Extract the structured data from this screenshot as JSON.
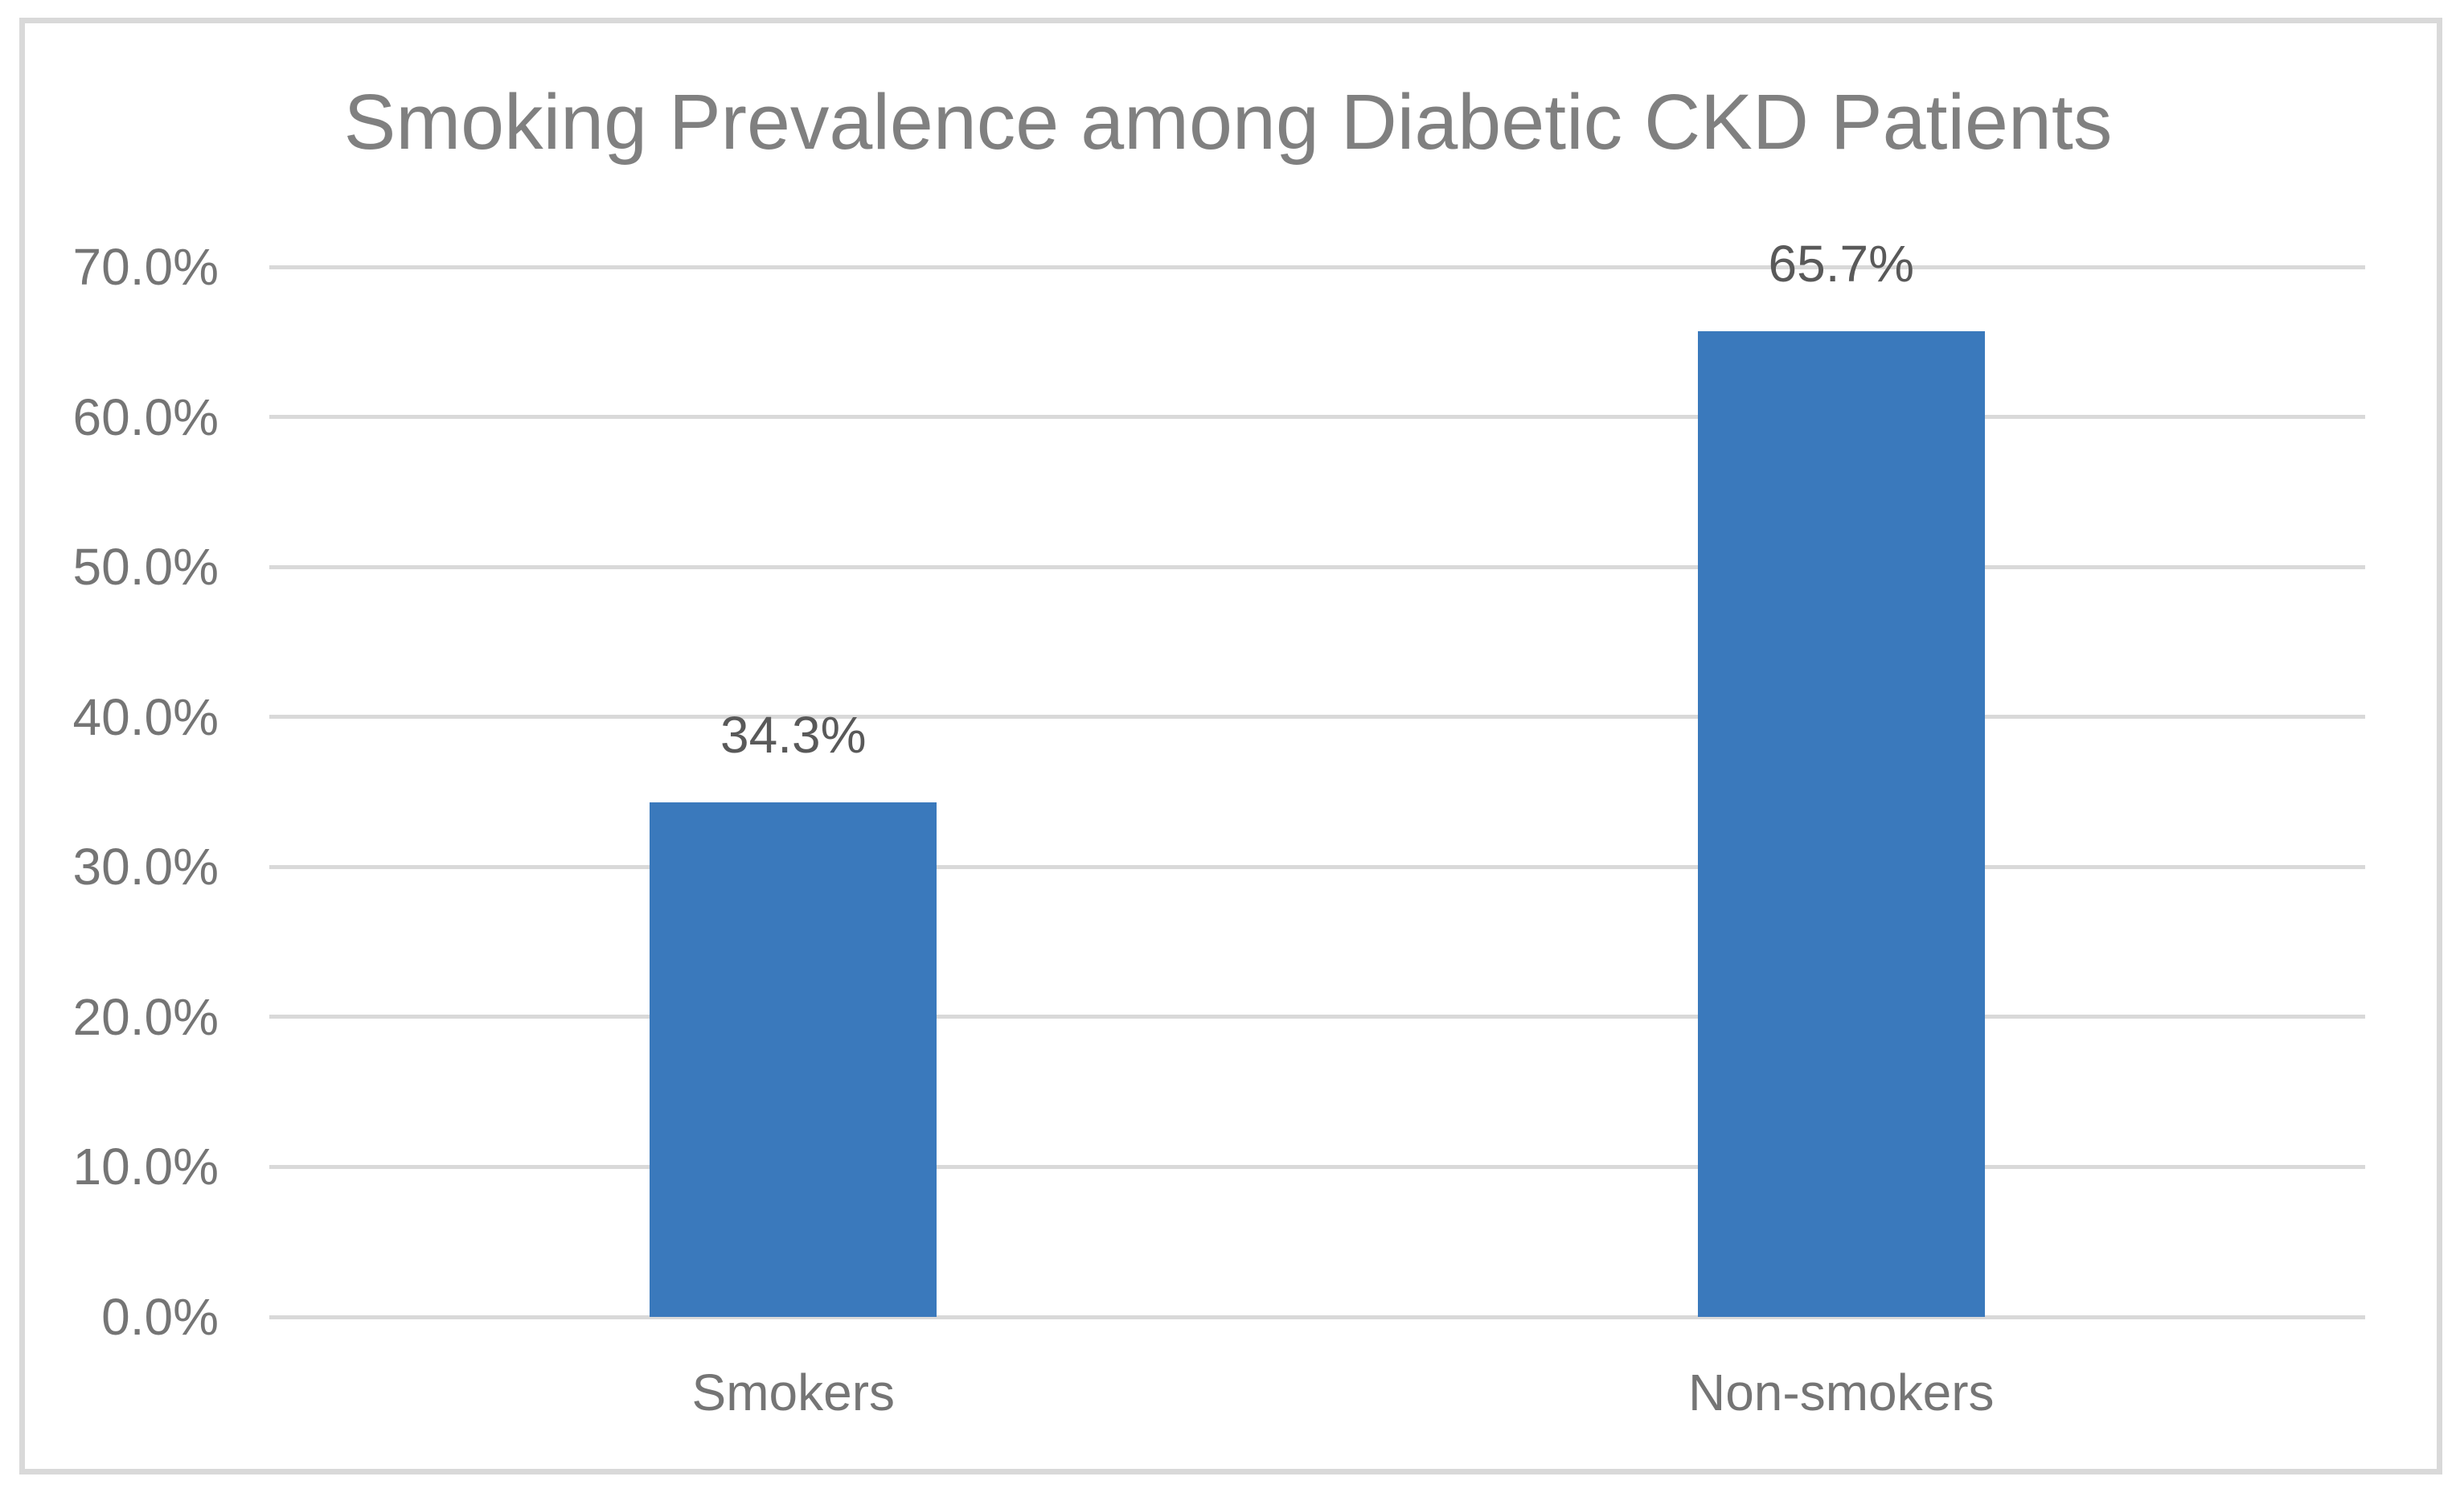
{
  "chart_data": {
    "type": "bar",
    "title": "Smoking Prevalence among Diabetic CKD Patients",
    "categories": [
      "Smokers",
      "Non-smokers"
    ],
    "values": [
      34.3,
      65.7
    ],
    "value_labels": [
      "34.3%",
      "65.7%"
    ],
    "xlabel": "",
    "ylabel": "",
    "ylim": [
      0,
      70
    ],
    "ytick_step": 10,
    "ytick_labels": [
      "0.0%",
      "10.0%",
      "20.0%",
      "30.0%",
      "40.0%",
      "50.0%",
      "60.0%",
      "70.0%"
    ],
    "grid": true,
    "legend": "none",
    "colors": {
      "bar_fill": "#3A79BC",
      "title_text": "#808080",
      "axis_tick_text": "#757575",
      "category_text": "#757575",
      "value_label_text": "#595959",
      "gridline": "#D9D9D9",
      "frame_border": "#D9D9D9",
      "background": "#FFFFFF"
    }
  }
}
